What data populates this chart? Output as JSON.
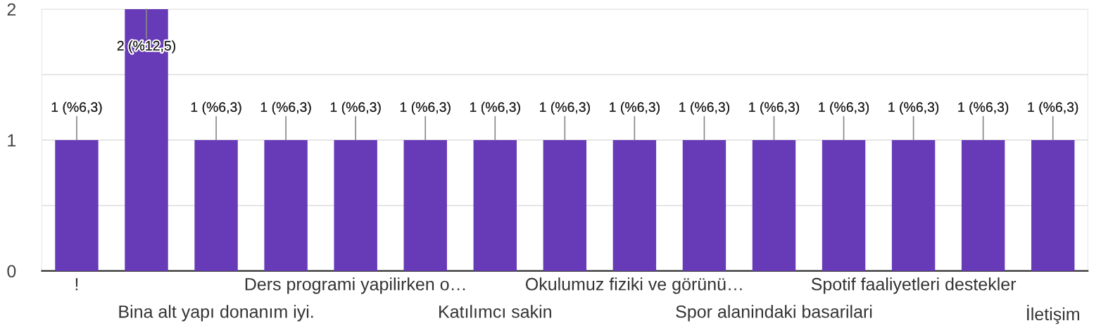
{
  "chart_data": {
    "type": "bar",
    "categories": [
      "!",
      null,
      "Bina alt yapı donanım iyi.",
      null,
      "Ders programi yapilirken o…",
      null,
      "Katılımcı sakin",
      null,
      "Okulumuz fiziki ve görünü…",
      null,
      "Spor alanindaki basarilari",
      null,
      "Spotif faaliyetleri destekler",
      null,
      "İletişim"
    ],
    "values": [
      1,
      2,
      1,
      1,
      1,
      1,
      1,
      1,
      1,
      1,
      1,
      1,
      1,
      1,
      1
    ],
    "color": "#673ab7",
    "value_labels": [
      "1 (%6,3)",
      "2 (%12,5)",
      "1 (%6,3)",
      "1 (%6,3)",
      "1 (%6,3)",
      "1 (%6,3)",
      "1 (%6,3)",
      "1 (%6,3)",
      "1 (%6,3)",
      "1 (%6,3)",
      "1 (%6,3)",
      "1 (%6,3)",
      "1 (%6,3)",
      "1 (%6,3)",
      "1 (%6,3)"
    ],
    "ylim": [
      0,
      2
    ],
    "yticks": [
      0,
      {
        "value": 0.5,
        "label": null
      },
      1,
      {
        "value": 1.5,
        "label": null
      },
      2
    ],
    "grid": "y"
  }
}
